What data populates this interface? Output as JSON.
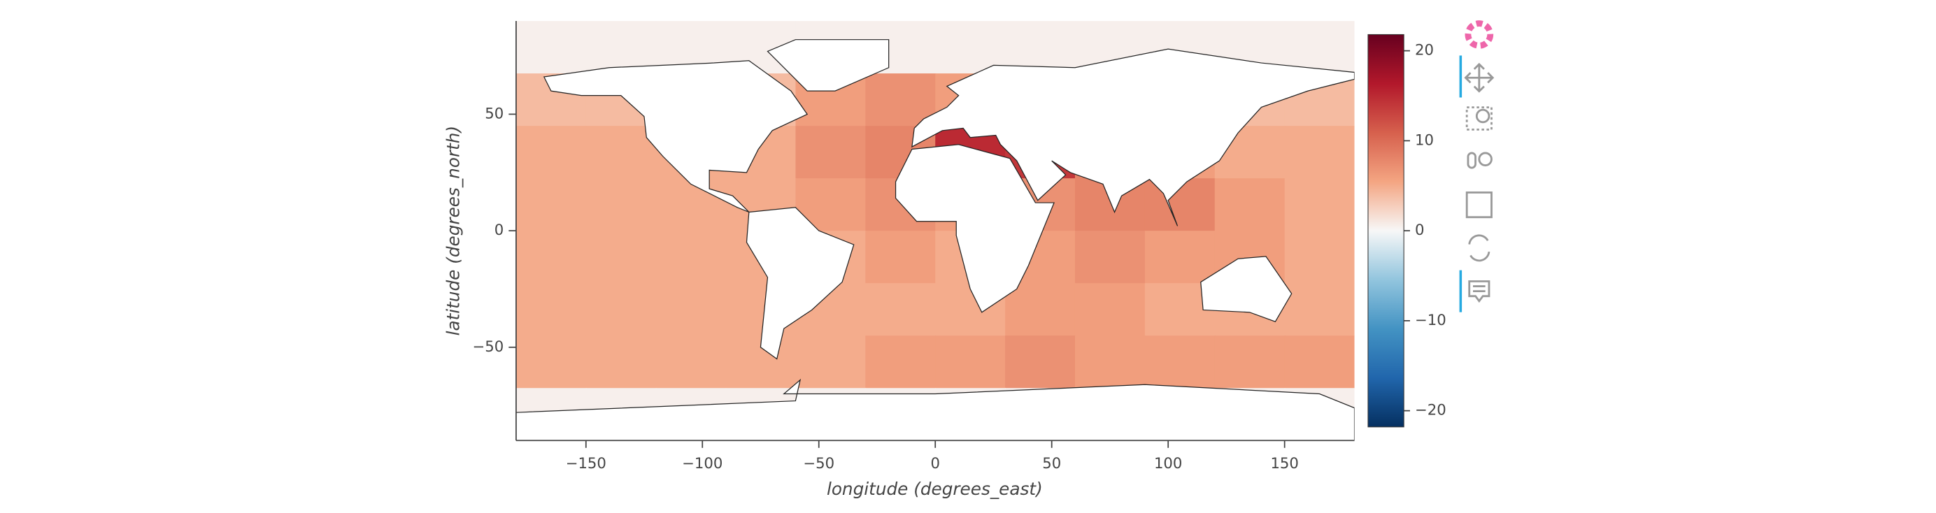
{
  "chart_data": {
    "type": "heatmap",
    "xlabel": "longitude (degrees_east)",
    "ylabel": "latitude (degrees_north)",
    "xlim": [
      -180,
      180
    ],
    "ylim": [
      -90,
      90
    ],
    "xticks": [
      {
        "value": -150,
        "label": "−150"
      },
      {
        "value": -100,
        "label": "−100"
      },
      {
        "value": -50,
        "label": "−50"
      },
      0,
      50,
      100,
      150
    ],
    "yticks": [
      {
        "value": -50,
        "label": "−50"
      },
      0,
      50
    ],
    "x": [
      -180,
      -150,
      -120,
      -90,
      -60,
      -30,
      0,
      30,
      60,
      90,
      120,
      150,
      180
    ],
    "y": [
      90,
      67.5,
      45,
      22.5,
      0,
      -22.5,
      -45,
      -67.5,
      -90
    ],
    "z": [
      [
        0.5,
        0.5,
        0.5,
        0.5,
        0.5,
        0.5,
        0.5,
        0.5,
        0.5,
        0.5,
        0.5,
        0.5
      ],
      [
        4,
        4,
        4,
        4,
        6,
        7,
        6,
        4,
        4,
        4,
        4,
        4
      ],
      [
        5,
        5,
        5,
        5,
        7,
        8,
        15,
        14,
        8,
        6,
        5,
        5
      ],
      [
        5,
        5,
        5,
        5,
        6,
        7,
        6,
        7,
        8,
        8,
        6,
        5
      ],
      [
        5,
        5,
        5,
        5,
        5,
        6,
        5,
        6,
        7,
        6,
        6,
        5
      ],
      [
        5,
        5,
        5,
        5,
        5,
        5,
        5,
        6,
        6,
        5,
        5,
        5
      ],
      [
        5,
        5,
        5,
        5,
        5,
        6,
        6,
        7,
        6,
        6,
        6,
        6
      ],
      [
        0.5,
        0.5,
        0.5,
        0.5,
        0.5,
        0.5,
        0.5,
        0.5,
        0.5,
        0.5,
        0.5,
        0.5
      ]
    ],
    "clim": [
      -21.8,
      21.8
    ],
    "cticks": [
      {
        "value": -20,
        "label": "−20"
      },
      {
        "value": -10,
        "label": "−10"
      },
      0,
      10,
      20
    ],
    "colormap": "RdBu_r"
  }
}
